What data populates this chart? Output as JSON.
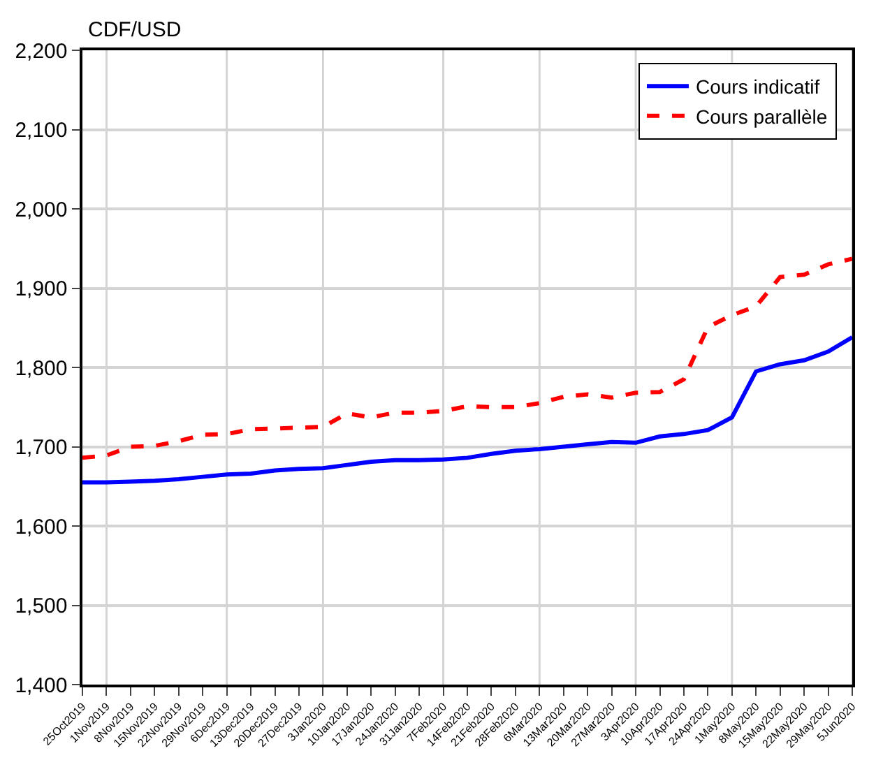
{
  "chart_data": {
    "type": "line",
    "ylabel": "CDF/USD",
    "x": [
      "2019-10-25",
      "2019-11-01",
      "2019-11-08",
      "2019-11-15",
      "2019-11-22",
      "2019-11-29",
      "2019-12-06",
      "2019-12-13",
      "2019-12-20",
      "2019-12-27",
      "2020-01-03",
      "2020-01-10",
      "2020-01-17",
      "2020-01-24",
      "2020-01-31",
      "2020-02-07",
      "2020-02-14",
      "2020-02-21",
      "2020-02-28",
      "2020-03-06",
      "2020-03-13",
      "2020-03-20",
      "2020-03-27",
      "2020-04-03",
      "2020-04-10",
      "2020-04-17",
      "2020-04-24",
      "2020-05-01",
      "2020-05-08",
      "2020-05-15",
      "2020-05-22",
      "2020-05-29",
      "2020-06-05"
    ],
    "series": [
      {
        "name": "Cours indicatif",
        "color": "#0000ff",
        "line_style": "solid",
        "values": [
          1655,
          1655,
          1656,
          1657,
          1659,
          1662,
          1665,
          1666,
          1670,
          1672,
          1673,
          1677,
          1681,
          1683,
          1683,
          1684,
          1686,
          1691,
          1695,
          1697,
          1700,
          1703,
          1706,
          1705,
          1713,
          1716,
          1721,
          1737,
          1795,
          1804,
          1809,
          1820,
          1838
        ]
      },
      {
        "name": "Cours parallèle",
        "color": "#ff0000",
        "line_style": "dashed",
        "values": [
          1686,
          1689,
          1700,
          1701,
          1707,
          1715,
          1716,
          1722,
          1723,
          1724,
          1725,
          1742,
          1737,
          1743,
          1743,
          1745,
          1751,
          1750,
          1750,
          1755,
          1763,
          1766,
          1762,
          1768,
          1769,
          1785,
          1851,
          1866,
          1877,
          1914,
          1917,
          1930,
          1937
        ]
      }
    ],
    "xlim": [
      "2019-10-25",
      "2020-06-05"
    ],
    "xticks": [
      {
        "value": "2019-10-25",
        "label": "25Oct2019"
      },
      {
        "value": "2019-11-01",
        "label": "1Nov2019"
      },
      {
        "value": "2019-11-08",
        "label": "8Nov2019"
      },
      {
        "value": "2019-11-15",
        "label": "15Nov2019"
      },
      {
        "value": "2019-11-22",
        "label": "22Nov2019"
      },
      {
        "value": "2019-11-29",
        "label": "29Nov2019"
      },
      {
        "value": "2019-12-06",
        "label": "6Dec2019"
      },
      {
        "value": "2019-12-13",
        "label": "13Dec2019"
      },
      {
        "value": "2019-12-20",
        "label": "20Dec2019"
      },
      {
        "value": "2019-12-27",
        "label": "27Dec2019"
      },
      {
        "value": "2020-01-03",
        "label": "3Jan2020"
      },
      {
        "value": "2020-01-10",
        "label": "10Jan2020"
      },
      {
        "value": "2020-01-17",
        "label": "17Jan2020"
      },
      {
        "value": "2020-01-24",
        "label": "24Jan2020"
      },
      {
        "value": "2020-01-31",
        "label": "31Jan2020"
      },
      {
        "value": "2020-02-07",
        "label": "7Feb2020"
      },
      {
        "value": "2020-02-14",
        "label": "14Feb2020"
      },
      {
        "value": "2020-02-21",
        "label": "21Feb2020"
      },
      {
        "value": "2020-02-28",
        "label": "28Feb2020"
      },
      {
        "value": "2020-03-06",
        "label": "6Mar2020"
      },
      {
        "value": "2020-03-13",
        "label": "13Mar2020"
      },
      {
        "value": "2020-03-20",
        "label": "20Mar2020"
      },
      {
        "value": "2020-03-27",
        "label": "27Mar2020"
      },
      {
        "value": "2020-04-03",
        "label": "3Apr2020"
      },
      {
        "value": "2020-04-10",
        "label": "10Apr2020"
      },
      {
        "value": "2020-04-17",
        "label": "17Apr2020"
      },
      {
        "value": "2020-04-24",
        "label": "24Apr2020"
      },
      {
        "value": "2020-05-01",
        "label": "1May2020"
      },
      {
        "value": "2020-05-08",
        "label": "8May2020"
      },
      {
        "value": "2020-05-15",
        "label": "15May2020"
      },
      {
        "value": "2020-05-22",
        "label": "22May2020"
      },
      {
        "value": "2020-05-29",
        "label": "29May2020"
      },
      {
        "value": "2020-06-05",
        "label": "5Jun2020"
      }
    ],
    "ylim": [
      1400,
      2200
    ],
    "yticks": [
      {
        "value": 1400,
        "label": "1,400"
      },
      {
        "value": 1500,
        "label": "1,500"
      },
      {
        "value": 1600,
        "label": "1,600"
      },
      {
        "value": 1700,
        "label": "1,700"
      },
      {
        "value": 1800,
        "label": "1,800"
      },
      {
        "value": 1900,
        "label": "1,900"
      },
      {
        "value": 2000,
        "label": "2,000"
      },
      {
        "value": 2100,
        "label": "2,100"
      },
      {
        "value": 2200,
        "label": "2,200"
      }
    ],
    "grid": true,
    "legend": "top right",
    "marker": "none"
  }
}
